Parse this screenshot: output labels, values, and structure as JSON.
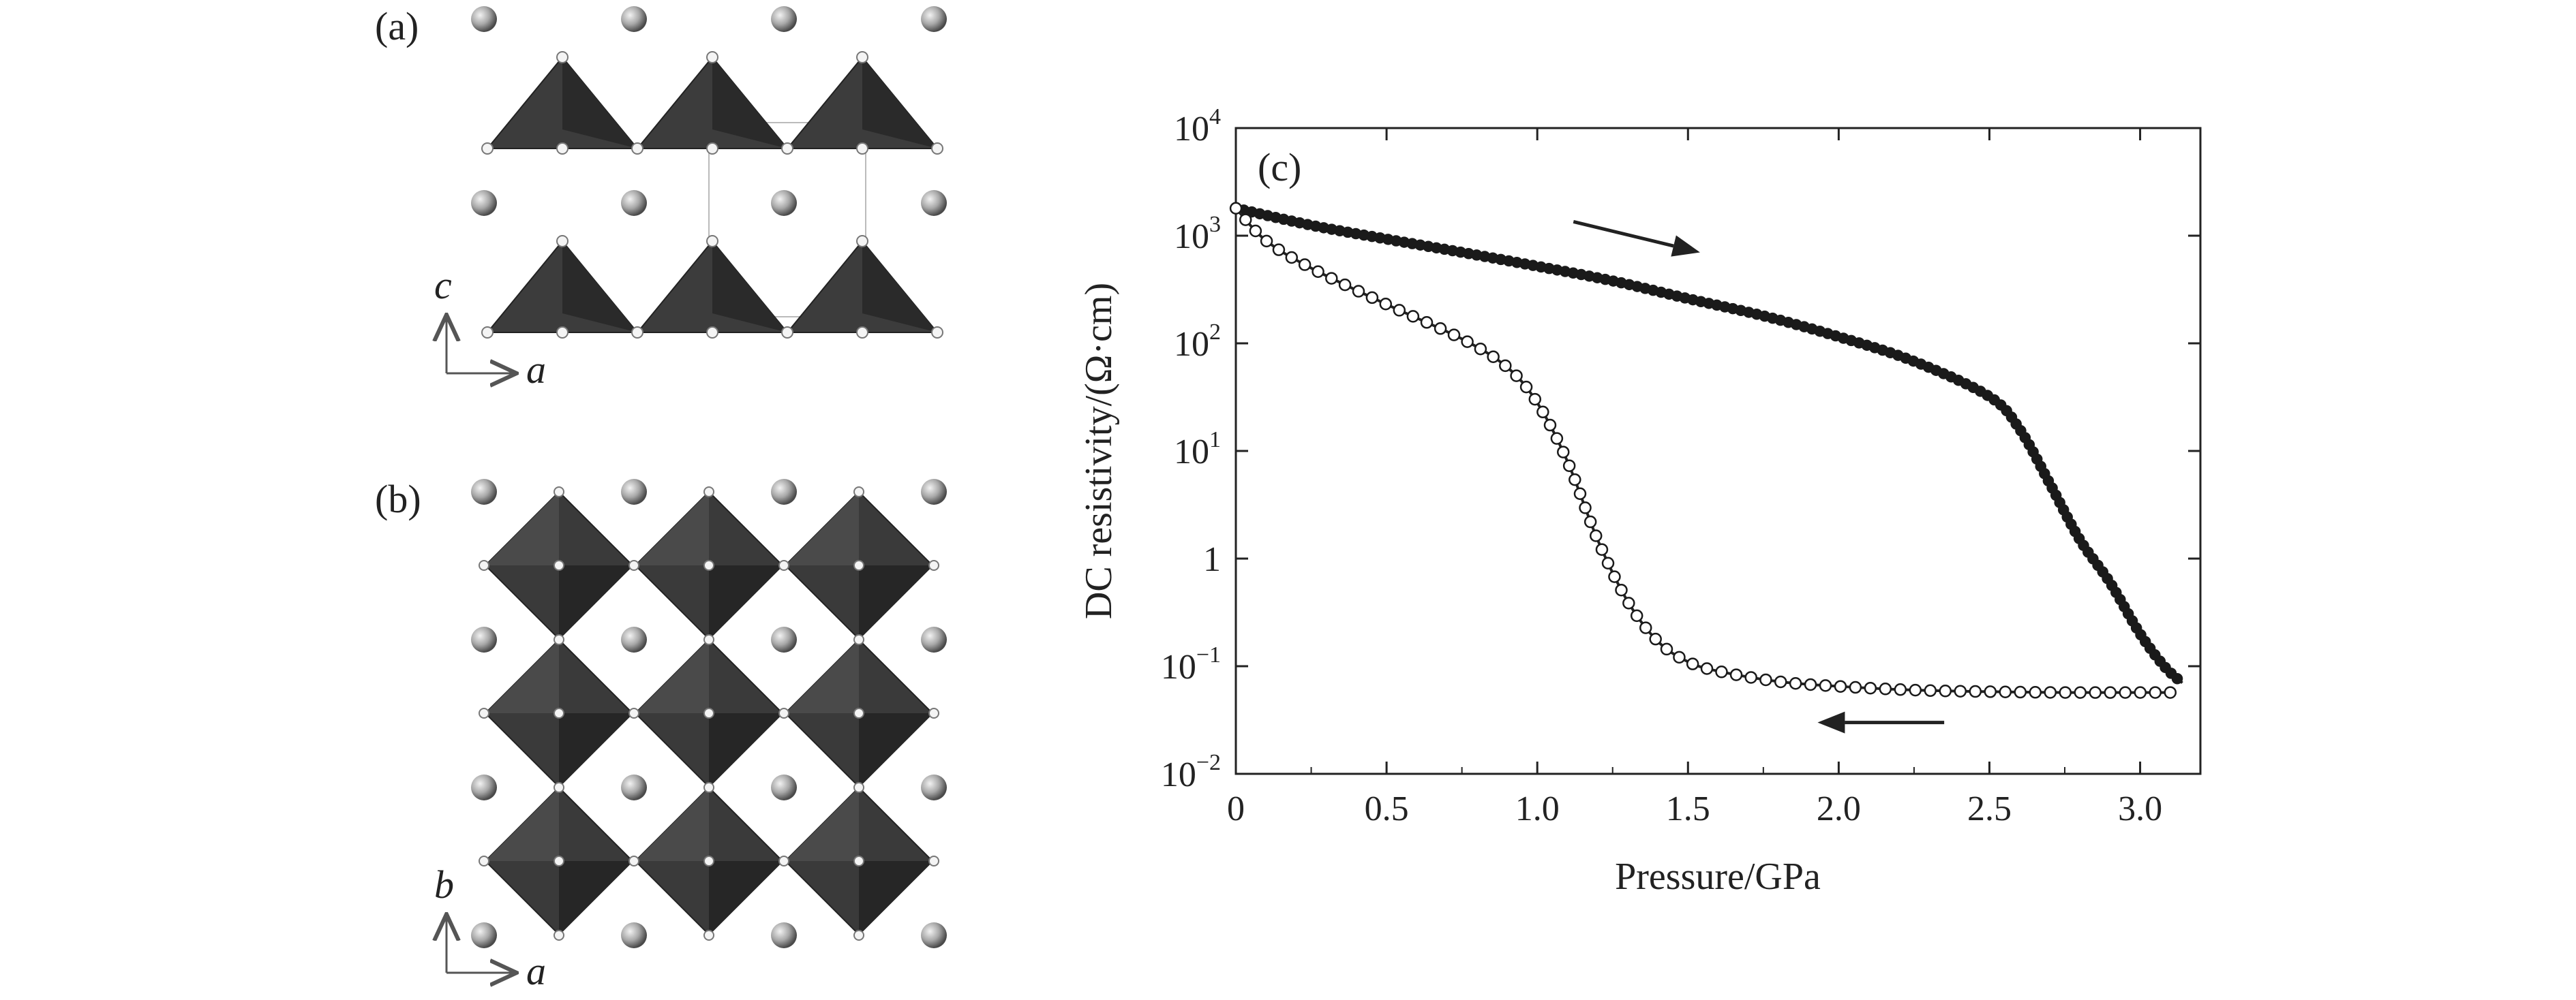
{
  "figure": {
    "panels": {
      "a": {
        "label": "(a)",
        "axes": {
          "vertical": "c",
          "horizontal": "a"
        }
      },
      "b": {
        "label": "(b)",
        "axes": {
          "vertical": "b",
          "horizontal": "a"
        }
      }
    }
  },
  "chart_data": {
    "type": "line",
    "panel_label": "(c)",
    "xlabel": "Pressure/GPa",
    "ylabel": "DC resistivity/(Ω·cm)",
    "xlim": [
      0,
      3.2
    ],
    "ylim": [
      0.01,
      10000
    ],
    "y_scale": "log",
    "grid": false,
    "x_ticks": [
      {
        "value": 0,
        "label": "0"
      },
      {
        "value": 0.5,
        "label": "0.5"
      },
      {
        "value": 1.0,
        "label": "1.0"
      },
      {
        "value": 1.5,
        "label": "1.5"
      },
      {
        "value": 2.0,
        "label": "2.0"
      },
      {
        "value": 2.5,
        "label": "2.5"
      },
      {
        "value": 3.0,
        "label": "3.0"
      }
    ],
    "y_ticks": [
      {
        "value": 0.01,
        "base": "10",
        "exp": "−2"
      },
      {
        "value": 0.1,
        "base": "10",
        "exp": "−1"
      },
      {
        "value": 1,
        "base": "1",
        "exp": ""
      },
      {
        "value": 10,
        "base": "10",
        "exp": "1"
      },
      {
        "value": 100,
        "base": "10",
        "exp": "2"
      },
      {
        "value": 1000,
        "base": "10",
        "exp": "3"
      },
      {
        "value": 10000,
        "base": "10",
        "exp": "4"
      }
    ],
    "series": [
      {
        "direction": "increasing pressure",
        "marker": "filled",
        "x": [
          0,
          0.25,
          0.5,
          0.75,
          1.0,
          1.25,
          1.5,
          1.75,
          2.0,
          2.25,
          2.5,
          2.6,
          2.7,
          2.8,
          2.9,
          3.0,
          3.08,
          3.14
        ],
        "y": [
          1800,
          1250,
          930,
          700,
          520,
          380,
          260,
          180,
          115,
          68,
          32,
          16,
          5,
          1.5,
          0.6,
          0.2,
          0.1,
          0.07
        ]
      },
      {
        "direction": "decreasing pressure",
        "marker": "open",
        "x": [
          3.1,
          2.75,
          2.5,
          2.25,
          2.0,
          1.8,
          1.6,
          1.5,
          1.4,
          1.3,
          1.2,
          1.1,
          1.0,
          0.9,
          0.75,
          0.5,
          0.25,
          0.1,
          0
        ],
        "y": [
          0.057,
          0.057,
          0.058,
          0.06,
          0.065,
          0.072,
          0.09,
          0.11,
          0.17,
          0.4,
          1.5,
          8,
          28,
          60,
          110,
          230,
          500,
          900,
          1800
        ]
      }
    ],
    "annotations": [
      {
        "type": "arrow",
        "direction": "right",
        "x_from": 1.12,
        "y_from": 1350,
        "x_to": 1.54,
        "y_to": 700
      },
      {
        "type": "arrow",
        "direction": "left",
        "x_from": 2.35,
        "y_from": 0.03,
        "x_to": 1.93,
        "y_to": 0.03
      }
    ]
  }
}
